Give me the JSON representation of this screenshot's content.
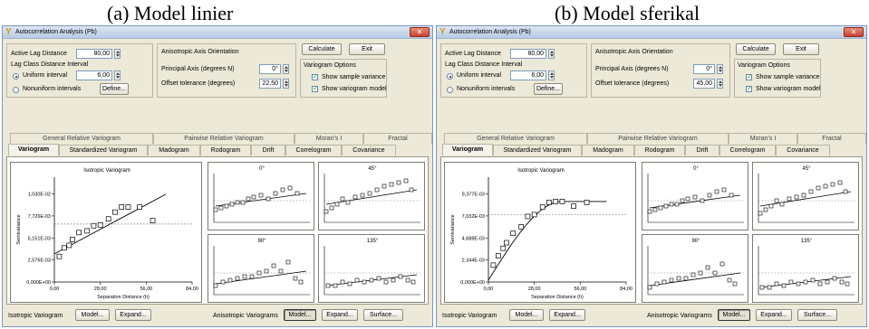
{
  "captions": {
    "left": "(a)  Model linier",
    "right": "(b) Model sferikal"
  },
  "window": {
    "title": "Autocorrelation Analysis (Pb)",
    "active_lag_label": "Active Lag Distance",
    "lag_class_label": "Lag Class Distance Interval",
    "uniform_label": "Uniform interval",
    "nonuniform_label": "Nonuniform intervals",
    "define_button": "Define...",
    "aniso_title": "Anisotropic Axis Orientation",
    "principal_label": "Principal Axis (degrees N)",
    "offset_label": "Offset tolerance (degrees)",
    "calculate_button": "Calculate",
    "exit_button": "Exit",
    "vario_options_title": "Variogram Options",
    "show_sample_label": "Show sample variance",
    "show_model_label": "Show variogram model",
    "tabs_back": [
      "General Relative Variogram",
      "Pairwise Relative Variogram",
      "Moran's I",
      "Fractal"
    ],
    "tabs_front": [
      "Variogram",
      "Standardized Variogram",
      "Madogram",
      "Rodogram",
      "Drift",
      "Correlogram",
      "Covariance"
    ],
    "isotropic_label": "Isotropic Variogram",
    "model_button": "Model...",
    "expand_button": "Expand...",
    "anisotropic_label": "Anisotropic Variograms",
    "surface_button": "Surface...",
    "small_titles": [
      "0°",
      "45°",
      "90°",
      "135°"
    ],
    "ylabel": "Semivariance",
    "xlabel": "Separation Distance (h)"
  },
  "windows": [
    {
      "active_lag": "80,00",
      "interval": "6,00",
      "principal_axis": "0°",
      "offset_tolerance": "22,50",
      "uniform_checked": true,
      "show_sample": true,
      "show_model": true
    },
    {
      "active_lag": "80,00",
      "interval": "6,00",
      "principal_axis": "0°",
      "offset_tolerance": "45,00",
      "uniform_checked": true,
      "show_sample": true,
      "show_model": true
    }
  ],
  "chart_data": [
    {
      "type": "scatter",
      "title": "Isotropic Variogram",
      "xlabel": "Separation Distance (h)",
      "ylabel": "Semivariance",
      "xlim": [
        0,
        84
      ],
      "ylim": [
        0,
        0.0123
      ],
      "xticks": [
        "0,00",
        "28,00",
        "56,00",
        "84,00"
      ],
      "yticks": [
        "0,000E+00",
        "2,576E-03",
        "5,151E-03",
        "7,726E-03",
        "1,030E-02"
      ],
      "x": [
        3,
        6,
        9,
        11,
        15,
        20,
        24,
        28,
        33,
        37,
        41,
        45,
        52,
        60
      ],
      "y": [
        0.003,
        0.004,
        0.0043,
        0.005,
        0.0058,
        0.006,
        0.0066,
        0.0067,
        0.0074,
        0.0082,
        0.0088,
        0.0088,
        0.0088,
        0.0072
      ],
      "model": "linear",
      "model_line": {
        "x": [
          0,
          68
        ],
        "y": [
          0.0033,
          0.0103
        ]
      },
      "sill": 0.0068
    },
    {
      "type": "scatter",
      "title": "Isotropic Variogram",
      "xlabel": "Separation Distance (h)",
      "ylabel": "Semivariance",
      "xlim": [
        0,
        84
      ],
      "ylim": [
        0,
        0.0112
      ],
      "xticks": [
        "0,00",
        "28,00",
        "56,00",
        "84,00"
      ],
      "yticks": [
        "0,000E+00",
        "2,344E-03",
        "4,688E-03",
        "7,032E-03",
        "9,377E-03"
      ],
      "x": [
        3,
        6,
        9,
        11,
        15,
        20,
        24,
        28,
        33,
        37,
        41,
        45,
        52,
        60
      ],
      "y": [
        0.0018,
        0.0028,
        0.0036,
        0.0042,
        0.0052,
        0.0059,
        0.007,
        0.0072,
        0.008,
        0.0085,
        0.0086,
        0.0086,
        0.0081,
        0.0085
      ],
      "model": "spherical",
      "sill": 0.0072
    }
  ]
}
